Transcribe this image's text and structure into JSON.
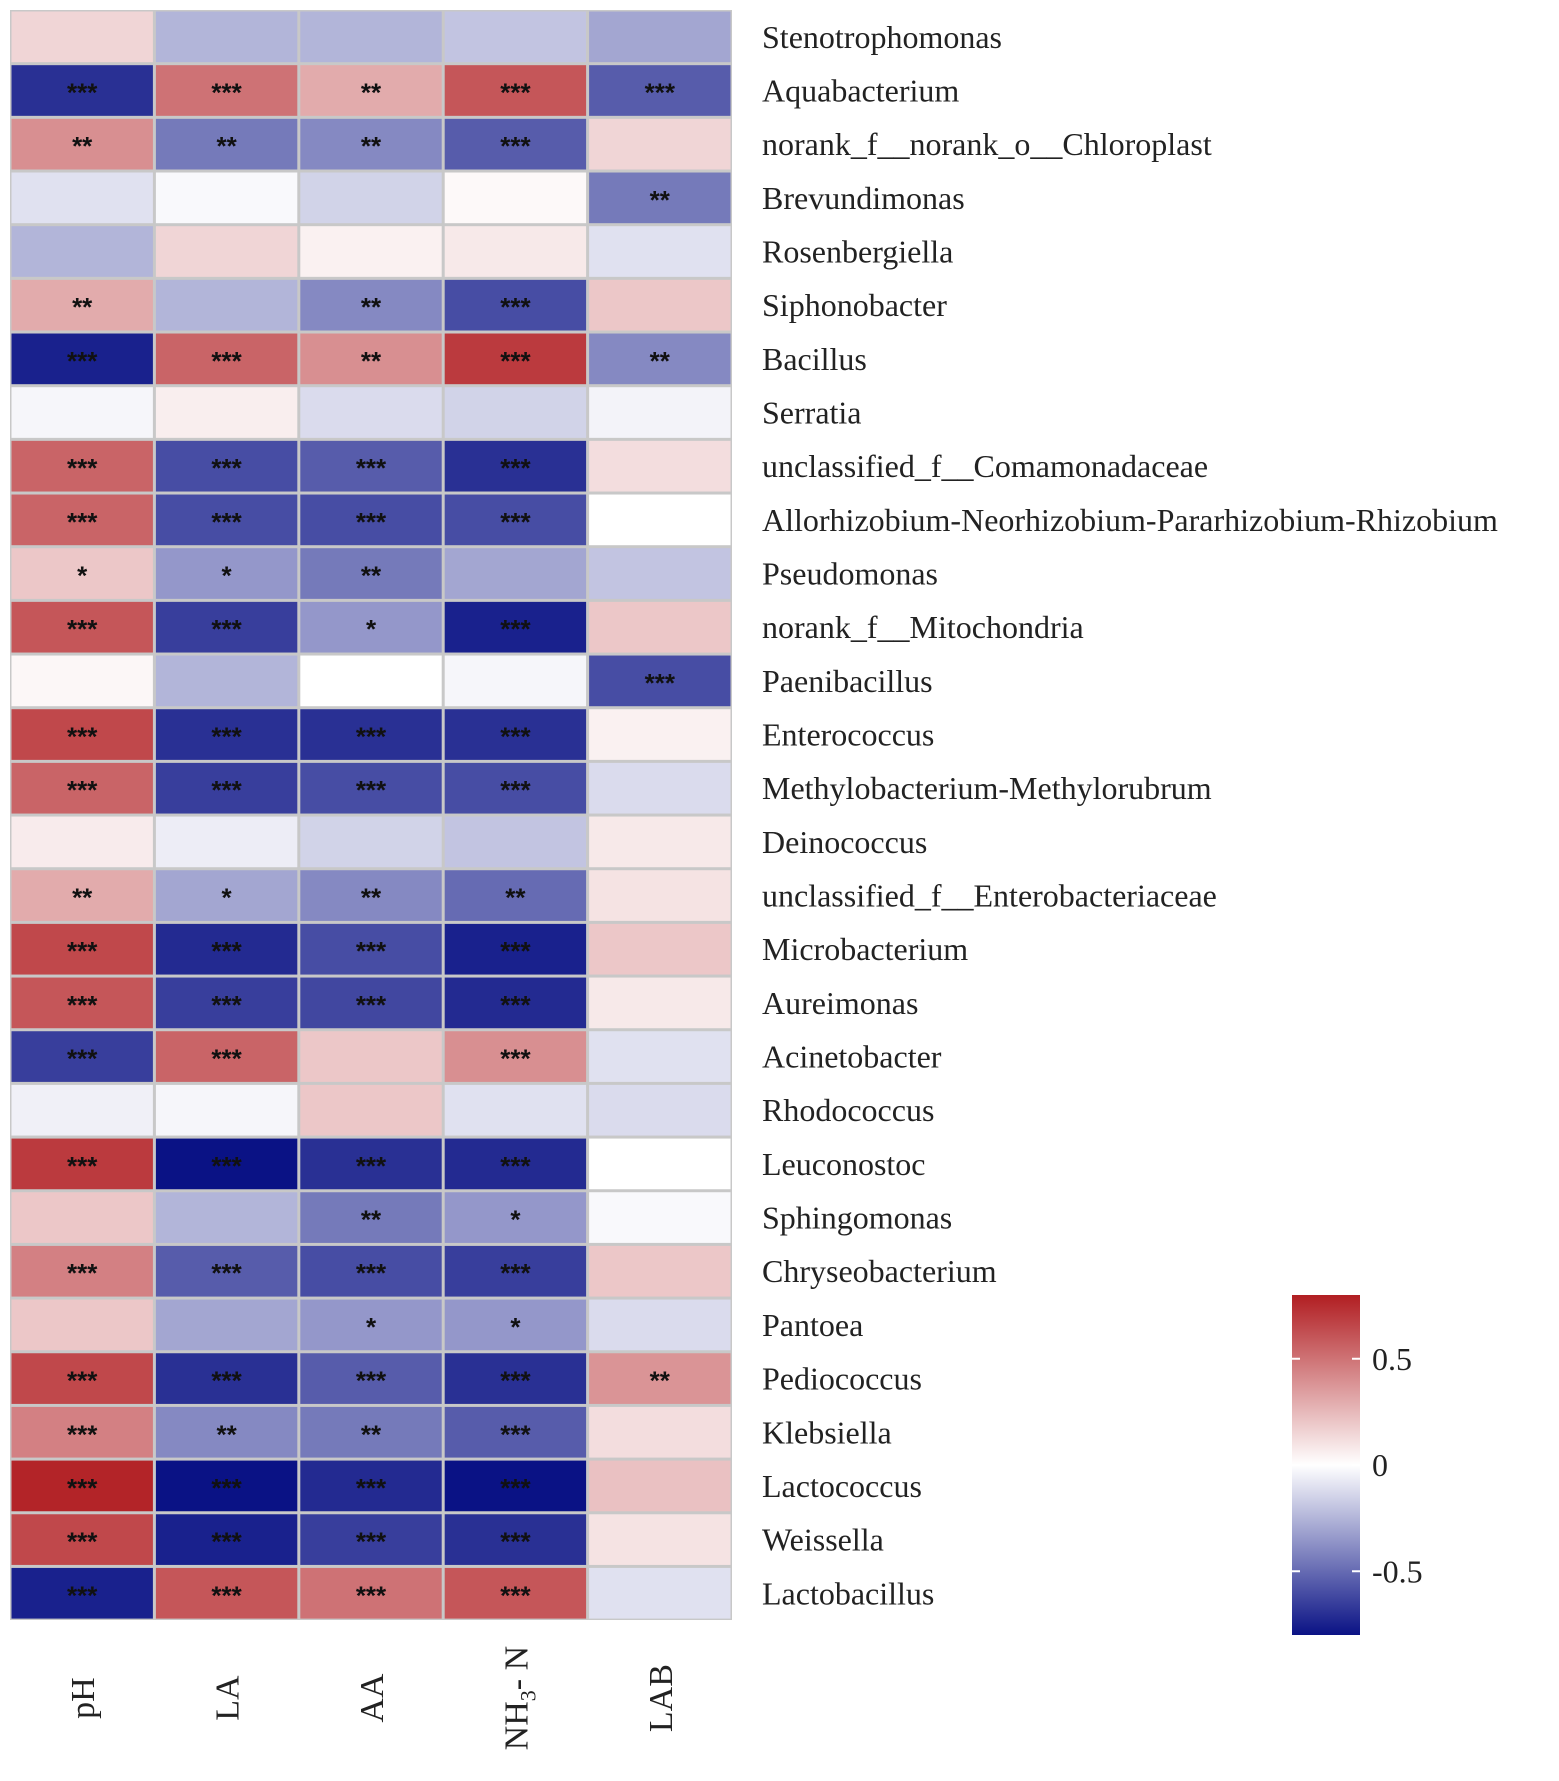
{
  "chart_data": {
    "type": "heatmap",
    "title": "",
    "columns": [
      "pH",
      "LA",
      "AA",
      "NH3-N",
      "LAB"
    ],
    "column_labels": [
      {
        "main": "pH",
        "sub": ""
      },
      {
        "main": "LA",
        "sub": ""
      },
      {
        "main": "AA",
        "sub": ""
      },
      {
        "main": "NH",
        "sub": "3",
        "tail": "- N"
      },
      {
        "main": "LAB",
        "sub": ""
      }
    ],
    "rows": [
      "Stenotrophomonas",
      "Aquabacterium",
      "norank_f__norank_o__Chloroplast",
      "Brevundimonas",
      "Rosenbergiella",
      "Siphonobacter",
      "Bacillus",
      "Serratia",
      "unclassified_f__Comamonadaceae",
      "Allorhizobium-Neorhizobium-Pararhizobium-Rhizobium",
      "Pseudomonas",
      "norank_f__Mitochondria",
      "Paenibacillus",
      "Enterococcus",
      "Methylobacterium-Methylorubrum",
      "Deinococcus",
      "unclassified_f__Enterobacteriaceae",
      "Microbacterium",
      "Aureimonas",
      "Acinetobacter",
      "Rhodococcus",
      "Leuconostoc",
      "Sphingomonas",
      "Chryseobacterium",
      "Pantoea",
      "Pediococcus",
      "Klebsiella",
      "Lactococcus",
      "Weissella",
      "Lactobacillus"
    ],
    "values": [
      [
        0.15,
        -0.25,
        -0.25,
        -0.2,
        -0.3
      ],
      [
        -0.7,
        0.5,
        0.3,
        0.6,
        -0.55
      ],
      [
        0.4,
        -0.45,
        -0.4,
        -0.55,
        0.15
      ],
      [
        -0.1,
        -0.02,
        -0.15,
        0.02,
        -0.45
      ],
      [
        -0.25,
        0.15,
        0.05,
        0.08,
        -0.1
      ],
      [
        0.3,
        -0.25,
        -0.4,
        -0.6,
        0.2
      ],
      [
        -0.75,
        0.55,
        0.4,
        0.7,
        -0.4
      ],
      [
        -0.03,
        0.06,
        -0.12,
        -0.15,
        -0.04
      ],
      [
        0.55,
        -0.6,
        -0.55,
        -0.7,
        0.12
      ],
      [
        0.55,
        -0.6,
        -0.6,
        -0.6,
        0.0
      ],
      [
        0.2,
        -0.35,
        -0.45,
        -0.3,
        -0.2
      ],
      [
        0.6,
        -0.65,
        -0.35,
        -0.75,
        0.2
      ],
      [
        0.03,
        -0.25,
        0.0,
        -0.03,
        -0.6
      ],
      [
        0.65,
        -0.7,
        -0.7,
        -0.7,
        0.05
      ],
      [
        0.55,
        -0.65,
        -0.6,
        -0.6,
        -0.12
      ],
      [
        0.07,
        -0.06,
        -0.15,
        -0.2,
        0.08
      ],
      [
        0.3,
        -0.3,
        -0.4,
        -0.5,
        0.1
      ],
      [
        0.65,
        -0.72,
        -0.6,
        -0.75,
        0.2
      ],
      [
        0.6,
        -0.65,
        -0.62,
        -0.72,
        0.08
      ],
      [
        -0.65,
        0.55,
        0.2,
        0.4,
        -0.1
      ],
      [
        -0.05,
        -0.03,
        0.2,
        -0.1,
        -0.12
      ],
      [
        0.7,
        -0.8,
        -0.7,
        -0.72,
        0.0
      ],
      [
        0.2,
        -0.25,
        -0.45,
        -0.35,
        -0.02
      ],
      [
        0.45,
        -0.55,
        -0.6,
        -0.65,
        0.2
      ],
      [
        0.2,
        -0.3,
        -0.35,
        -0.35,
        -0.12
      ],
      [
        0.65,
        -0.7,
        -0.55,
        -0.7,
        0.38
      ],
      [
        0.45,
        -0.4,
        -0.45,
        -0.55,
        0.12
      ],
      [
        0.78,
        -0.8,
        -0.72,
        -0.8,
        0.22
      ],
      [
        0.65,
        -0.75,
        -0.65,
        -0.7,
        0.1
      ],
      [
        -0.75,
        0.6,
        0.5,
        0.6,
        -0.1
      ]
    ],
    "significance": [
      [
        "",
        "",
        "",
        "",
        ""
      ],
      [
        "***",
        "***",
        "**",
        "***",
        "***"
      ],
      [
        "**",
        "**",
        "**",
        "***",
        ""
      ],
      [
        "",
        "",
        "",
        "",
        "**"
      ],
      [
        "",
        "",
        "",
        "",
        ""
      ],
      [
        "**",
        "",
        "**",
        "***",
        ""
      ],
      [
        "***",
        "***",
        "**",
        "***",
        "**"
      ],
      [
        "",
        "",
        "",
        "",
        ""
      ],
      [
        "***",
        "***",
        "***",
        "***",
        ""
      ],
      [
        "***",
        "***",
        "***",
        "***",
        ""
      ],
      [
        "*",
        "*",
        "**",
        "",
        ""
      ],
      [
        "***",
        "***",
        "*",
        "***",
        ""
      ],
      [
        "",
        "",
        "",
        "",
        "***"
      ],
      [
        "***",
        "***",
        "***",
        "***",
        ""
      ],
      [
        "***",
        "***",
        "***",
        "***",
        ""
      ],
      [
        "",
        "",
        "",
        "",
        ""
      ],
      [
        "**",
        "*",
        "**",
        "**",
        ""
      ],
      [
        "***",
        "***",
        "***",
        "***",
        ""
      ],
      [
        "***",
        "***",
        "***",
        "***",
        ""
      ],
      [
        "***",
        "***",
        "",
        "***",
        ""
      ],
      [
        "",
        "",
        "",
        "",
        ""
      ],
      [
        "***",
        "***",
        "***",
        "***",
        ""
      ],
      [
        "",
        "",
        "**",
        "*",
        ""
      ],
      [
        "***",
        "***",
        "***",
        "***",
        ""
      ],
      [
        "",
        "",
        "*",
        "*",
        ""
      ],
      [
        "***",
        "***",
        "***",
        "***",
        "**"
      ],
      [
        "***",
        "**",
        "**",
        "***",
        ""
      ],
      [
        "***",
        "***",
        "***",
        "***",
        ""
      ],
      [
        "***",
        "***",
        "***",
        "***",
        ""
      ],
      [
        "***",
        "***",
        "***",
        "***",
        ""
      ]
    ],
    "color_scale": {
      "range": [
        -0.8,
        0.8
      ],
      "low_color": "#0a1285",
      "mid_color": "#ffffff",
      "high_color": "#b11e22",
      "ticks": [
        0.5,
        0,
        -0.5
      ],
      "tick_labels": [
        "0.5",
        "0",
        "-0.5"
      ]
    },
    "legend_placement": "bottom-right"
  }
}
